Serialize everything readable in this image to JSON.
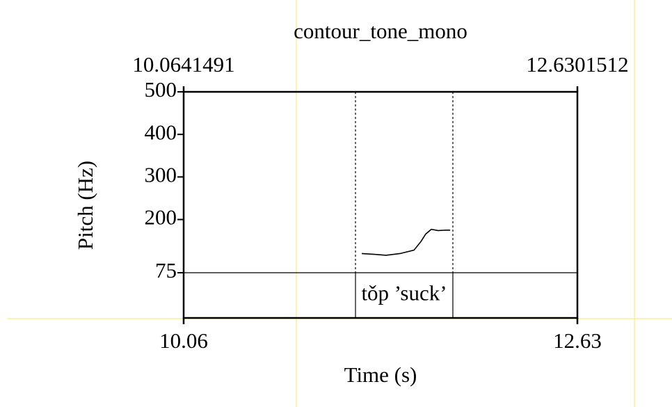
{
  "chart_data": {
    "type": "line",
    "title": "contour_tone_mono",
    "x_label": "Time (s)",
    "y_label": "Pitch (Hz)",
    "xlim": [
      10.0641491,
      12.6301512
    ],
    "xticks": [
      {
        "value": 10.0641491,
        "label": "10.06"
      },
      {
        "value": 12.6301512,
        "label": "12.63"
      }
    ],
    "ylim": [
      75,
      500
    ],
    "yticks": [
      75,
      200,
      300,
      400,
      500
    ],
    "series": [
      {
        "color": "#000000",
        "x": [
          11.225,
          11.315,
          11.383,
          11.474,
          11.565,
          11.61,
          11.642,
          11.678,
          11.723,
          11.769,
          11.801
        ],
        "values": [
          120,
          118,
          116,
          120,
          128,
          148,
          166,
          177,
          174,
          175,
          175
        ]
      }
    ],
    "intervals": [
      {
        "start": 11.184,
        "end": 11.8186,
        "label": "tǒp ’suck’"
      }
    ]
  }
}
